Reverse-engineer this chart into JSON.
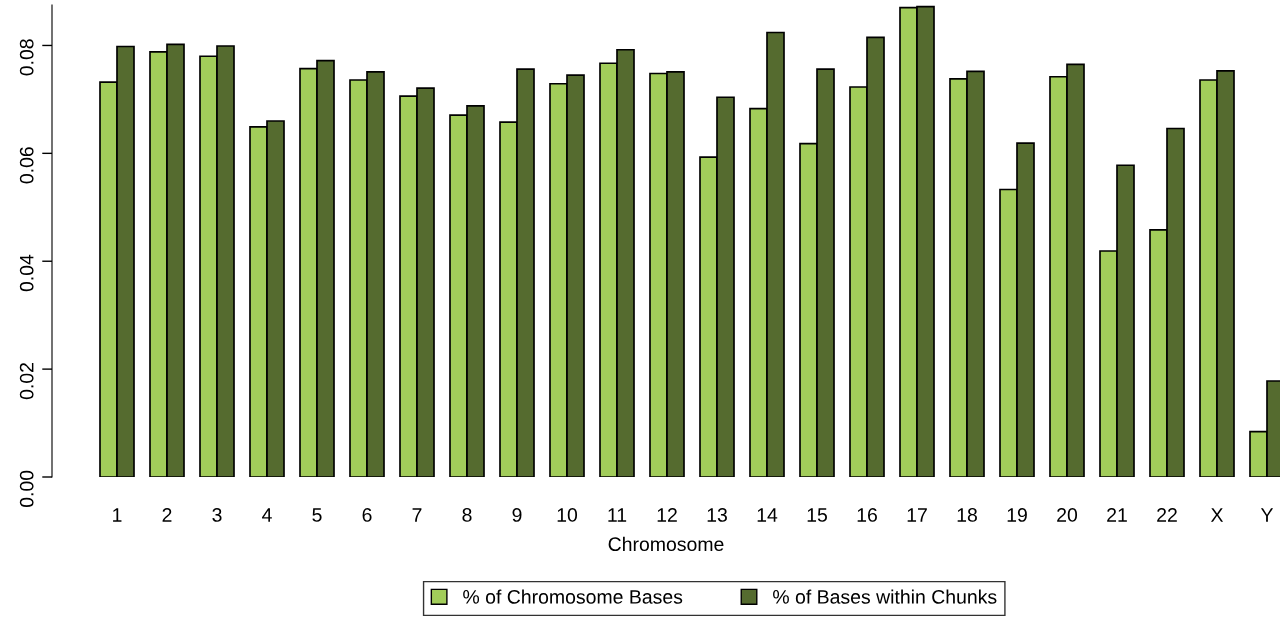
{
  "chart_data": {
    "type": "bar",
    "xlabel": "Chromosome",
    "categories": [
      "1",
      "2",
      "3",
      "4",
      "5",
      "6",
      "7",
      "8",
      "9",
      "10",
      "11",
      "12",
      "13",
      "14",
      "15",
      "16",
      "17",
      "18",
      "19",
      "20",
      "21",
      "22",
      "X",
      "Y"
    ],
    "series": [
      {
        "name": "% of Chromosome Bases",
        "color": "#a2cd5a",
        "values": [
          0.0732,
          0.0788,
          0.078,
          0.0649,
          0.0757,
          0.0736,
          0.0706,
          0.0671,
          0.0658,
          0.0729,
          0.0767,
          0.0748,
          0.0593,
          0.0683,
          0.0618,
          0.0723,
          0.087,
          0.0738,
          0.0533,
          0.0742,
          0.0419,
          0.0458,
          0.0736,
          0.0084
        ]
      },
      {
        "name": "% of Bases within Chunks",
        "color": "#556b2f",
        "values": [
          0.0798,
          0.0802,
          0.0799,
          0.066,
          0.0772,
          0.0751,
          0.0721,
          0.0688,
          0.0756,
          0.0745,
          0.0792,
          0.0751,
          0.0704,
          0.0824,
          0.0756,
          0.0815,
          0.0872,
          0.0752,
          0.0619,
          0.0765,
          0.0578,
          0.0646,
          0.0753,
          0.0178
        ]
      }
    ],
    "ylim": [
      0,
      0.0875
    ],
    "yticks": [
      {
        "value": 0,
        "label": "0.00"
      },
      {
        "value": 0.02,
        "label": "0.02"
      },
      {
        "value": 0.04,
        "label": "0.04"
      },
      {
        "value": 0.06,
        "label": "0.06"
      },
      {
        "value": 0.08,
        "label": "0.08"
      }
    ],
    "grid": false,
    "legend": "bottom"
  }
}
